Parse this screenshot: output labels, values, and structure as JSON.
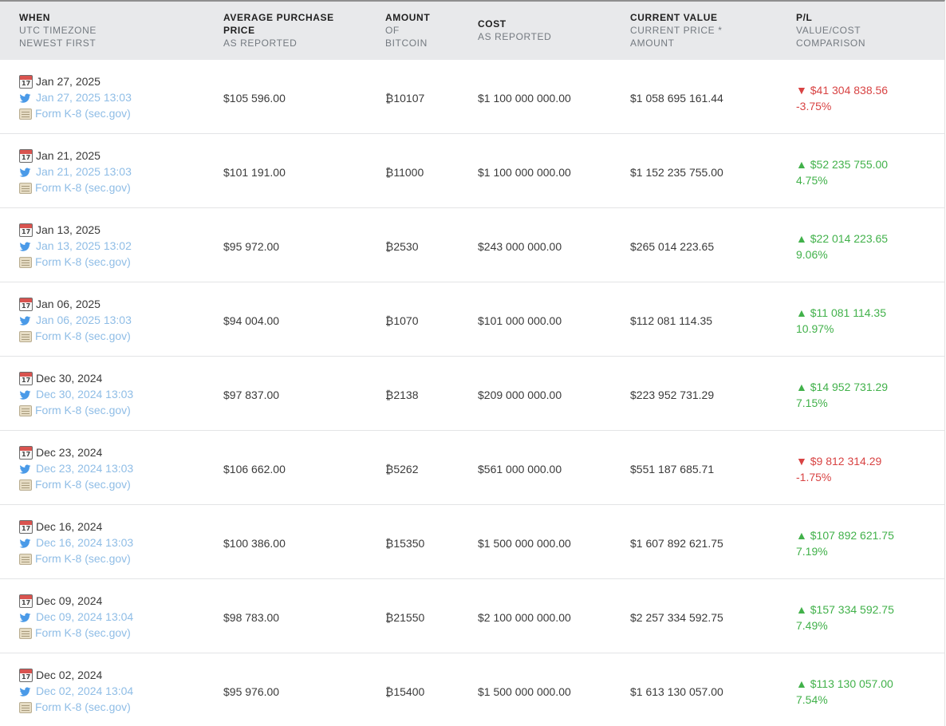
{
  "headers": {
    "when": {
      "main": "WHEN",
      "sub1": "UTC TIMEZONE",
      "sub2": "NEWEST FIRST"
    },
    "avg": {
      "main1": "AVERAGE PURCHASE",
      "main2": "PRICE",
      "sub1": "AS REPORTED"
    },
    "amount": {
      "main": "AMOUNT",
      "sub1": "OF",
      "sub2": "BITCOIN"
    },
    "cost": {
      "main": "COST",
      "sub1": "AS REPORTED"
    },
    "value": {
      "main": "CURRENT VALUE",
      "sub1": "CURRENT PRICE *",
      "sub2": "AMOUNT"
    },
    "pl": {
      "main": "P/L",
      "sub1": "VALUE/COST",
      "sub2": "COMPARISON"
    }
  },
  "colors": {
    "up": "#41b14a",
    "down": "#d84343",
    "link": "#8fbde6",
    "header_bg": "#e8e9eb"
  },
  "rows": [
    {
      "date": "Jan 27, 2025",
      "tweet": "Jan 27, 2025 13:03",
      "filing": "Form K-8 (sec.gov)",
      "avg": "$105 596.00",
      "amount": "₿10107",
      "cost": "$1 100 000 000.00",
      "value": "$1 058 695 161.44",
      "pl": "▼ $41 304 838.56",
      "pct": "-3.75%",
      "dir": "down"
    },
    {
      "date": "Jan 21, 2025",
      "tweet": "Jan 21, 2025 13:03",
      "filing": "Form K-8 (sec.gov)",
      "avg": "$101 191.00",
      "amount": "₿11000",
      "cost": "$1 100 000 000.00",
      "value": "$1 152 235 755.00",
      "pl": "▲ $52 235 755.00",
      "pct": "4.75%",
      "dir": "up"
    },
    {
      "date": "Jan 13, 2025",
      "tweet": "Jan 13, 2025 13:02",
      "filing": "Form K-8 (sec.gov)",
      "avg": "$95 972.00",
      "amount": "₿2530",
      "cost": "$243 000 000.00",
      "value": "$265 014 223.65",
      "pl": "▲ $22 014 223.65",
      "pct": "9.06%",
      "dir": "up"
    },
    {
      "date": "Jan 06, 2025",
      "tweet": "Jan 06, 2025 13:03",
      "filing": "Form K-8 (sec.gov)",
      "avg": "$94 004.00",
      "amount": "₿1070",
      "cost": "$101 000 000.00",
      "value": "$112 081 114.35",
      "pl": "▲ $11 081 114.35",
      "pct": "10.97%",
      "dir": "up"
    },
    {
      "date": "Dec 30, 2024",
      "tweet": "Dec 30, 2024 13:03",
      "filing": "Form K-8 (sec.gov)",
      "avg": "$97 837.00",
      "amount": "₿2138",
      "cost": "$209 000 000.00",
      "value": "$223 952 731.29",
      "pl": "▲ $14 952 731.29",
      "pct": "7.15%",
      "dir": "up"
    },
    {
      "date": "Dec 23, 2024",
      "tweet": "Dec 23, 2024 13:03",
      "filing": "Form K-8 (sec.gov)",
      "avg": "$106 662.00",
      "amount": "₿5262",
      "cost": "$561 000 000.00",
      "value": "$551 187 685.71",
      "pl": "▼ $9 812 314.29",
      "pct": "-1.75%",
      "dir": "down"
    },
    {
      "date": "Dec 16, 2024",
      "tweet": "Dec 16, 2024 13:03",
      "filing": "Form K-8 (sec.gov)",
      "avg": "$100 386.00",
      "amount": "₿15350",
      "cost": "$1 500 000 000.00",
      "value": "$1 607 892 621.75",
      "pl": "▲ $107 892 621.75",
      "pct": "7.19%",
      "dir": "up"
    },
    {
      "date": "Dec 09, 2024",
      "tweet": "Dec 09, 2024 13:04",
      "filing": "Form K-8 (sec.gov)",
      "avg": "$98 783.00",
      "amount": "₿21550",
      "cost": "$2 100 000 000.00",
      "value": "$2 257 334 592.75",
      "pl": "▲ $157 334 592.75",
      "pct": "7.49%",
      "dir": "up"
    },
    {
      "date": "Dec 02, 2024",
      "tweet": "Dec 02, 2024 13:04",
      "filing": "Form K-8 (sec.gov)",
      "avg": "$95 976.00",
      "amount": "₿15400",
      "cost": "$1 500 000 000.00",
      "value": "$1 613 130 057.00",
      "pl": "▲ $113 130 057.00",
      "pct": "7.54%",
      "dir": "up"
    }
  ]
}
